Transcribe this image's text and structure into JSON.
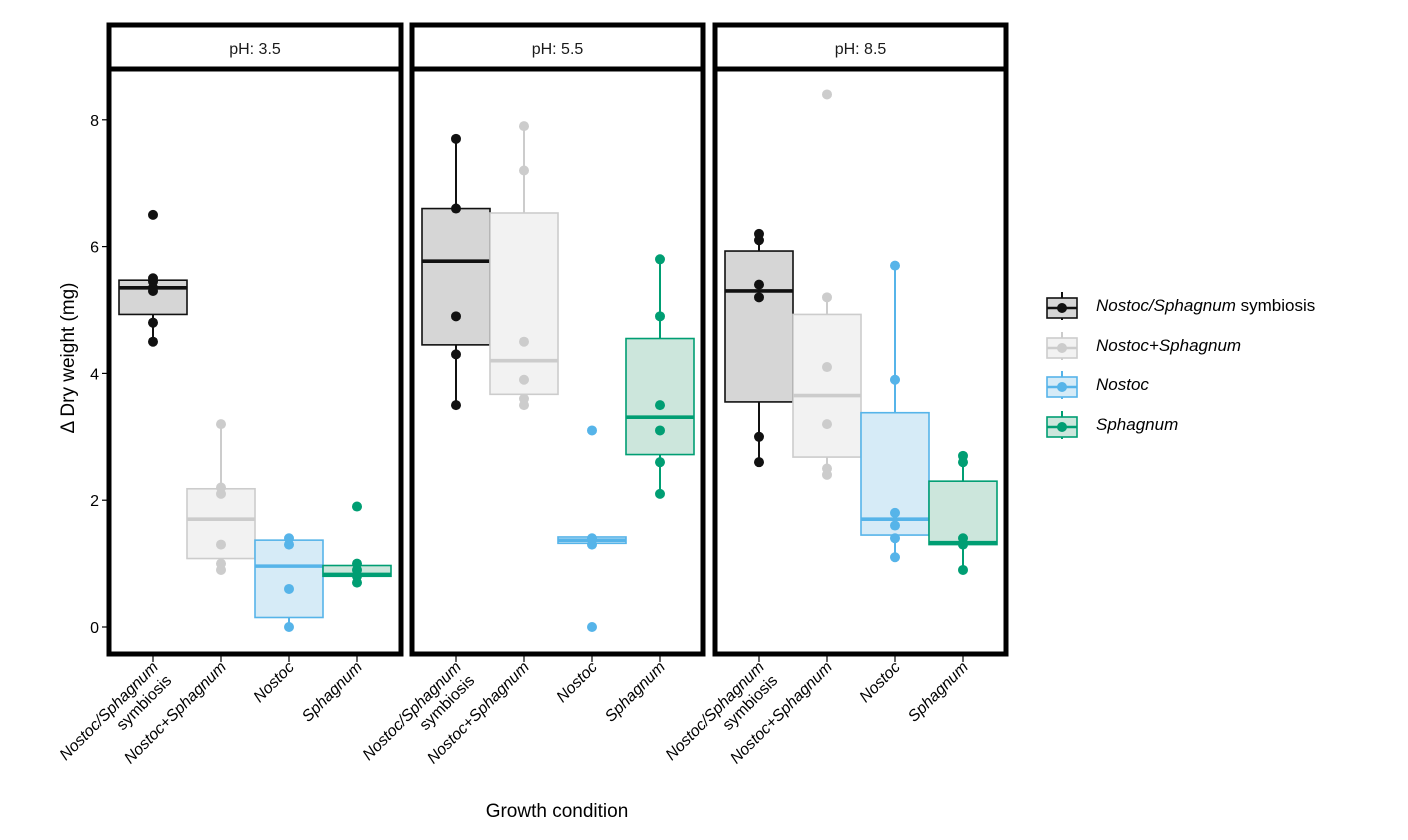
{
  "chart_data": {
    "type": "box",
    "xlabel": "Growth condition",
    "ylabel": "Δ Dry weight (mg)",
    "ylim": [
      -0.4,
      8.95
    ],
    "yticks": [
      0,
      2,
      4,
      6,
      8
    ],
    "ytick_labels": [
      "0",
      "2",
      "4",
      "6",
      "8"
    ],
    "categories": [
      {
        "key": "sym",
        "lines": [
          [
            "Nostoc/Sphagnum",
            ""
          ],
          [
            "symbiosis"
          ]
        ],
        "italic_prefix": true
      },
      {
        "key": "plus",
        "lines": [
          [
            "Nostoc+Sphagnum"
          ]
        ]
      },
      {
        "key": "nos",
        "lines": [
          [
            "Nostoc"
          ]
        ]
      },
      {
        "key": "sph",
        "lines": [
          [
            "Sphagnum"
          ]
        ]
      }
    ],
    "series_colors": {
      "sym": {
        "stroke": "#111111",
        "fill": "#d6d6d6",
        "point": "#111111"
      },
      "plus": {
        "stroke": "#cccccc",
        "fill": "#f2f2f2",
        "point": "#cccccc"
      },
      "nos": {
        "stroke": "#56b4e9",
        "fill": "#d6ebf7",
        "point": "#56b4e9"
      },
      "sph": {
        "stroke": "#009e73",
        "fill": "#cce6dc",
        "point": "#009e73"
      }
    },
    "panels": [
      {
        "title": "pH: 3.5",
        "groups": [
          {
            "key": "sym",
            "min": 4.5,
            "q1": 4.93,
            "median": 5.35,
            "q3": 5.47,
            "max": 5.55,
            "points": [
              4.5,
              4.8,
              5.3,
              5.35,
              5.45,
              5.5,
              6.5
            ]
          },
          {
            "key": "plus",
            "min": 0.9,
            "q1": 1.08,
            "median": 1.7,
            "q3": 2.18,
            "max": 3.2,
            "points": [
              0.9,
              1.0,
              1.3,
              2.1,
              2.2,
              3.2
            ]
          },
          {
            "key": "nos",
            "min": 0.0,
            "q1": 0.15,
            "median": 0.96,
            "q3": 1.37,
            "max": 1.4,
            "points": [
              0.0,
              0.6,
              1.3,
              1.4
            ]
          },
          {
            "key": "sph",
            "min": 0.7,
            "q1": 0.8,
            "median": 0.83,
            "q3": 0.97,
            "max": 1.0,
            "points": [
              0.7,
              0.8,
              0.9,
              1.0,
              1.9
            ]
          }
        ]
      },
      {
        "title": "pH: 5.5",
        "groups": [
          {
            "key": "sym",
            "min": 3.5,
            "q1": 4.45,
            "median": 5.77,
            "q3": 6.6,
            "max": 7.7,
            "points": [
              3.5,
              4.3,
              4.9,
              6.6,
              7.7
            ]
          },
          {
            "key": "plus",
            "min": 3.5,
            "q1": 3.67,
            "median": 4.2,
            "q3": 6.53,
            "max": 7.9,
            "points": [
              3.5,
              3.6,
              3.9,
              4.5,
              7.2,
              7.9
            ]
          },
          {
            "key": "nos",
            "min": 1.3,
            "q1": 1.32,
            "median": 1.37,
            "q3": 1.42,
            "max": 1.42,
            "points": [
              0.0,
              1.3,
              1.4,
              3.1
            ]
          },
          {
            "key": "sph",
            "min": 2.1,
            "q1": 2.72,
            "median": 3.31,
            "q3": 4.55,
            "max": 5.8,
            "points": [
              2.1,
              2.6,
              3.1,
              3.5,
              4.9,
              5.8
            ]
          }
        ]
      },
      {
        "title": "pH: 8.5",
        "groups": [
          {
            "key": "sym",
            "min": 2.6,
            "q1": 3.55,
            "median": 5.3,
            "q3": 5.93,
            "max": 6.2,
            "points": [
              2.6,
              3.0,
              5.2,
              5.4,
              6.1,
              6.2
            ]
          },
          {
            "key": "plus",
            "min": 2.4,
            "q1": 2.68,
            "median": 3.65,
            "q3": 4.93,
            "max": 5.2,
            "points": [
              2.4,
              2.5,
              3.2,
              4.1,
              5.2,
              8.4
            ]
          },
          {
            "key": "nos",
            "min": 1.1,
            "q1": 1.45,
            "median": 1.7,
            "q3": 3.38,
            "max": 5.7,
            "points": [
              1.1,
              1.4,
              1.6,
              1.8,
              3.9,
              5.7
            ]
          },
          {
            "key": "sph",
            "min": 0.9,
            "q1": 1.3,
            "median": 1.33,
            "q3": 2.3,
            "max": 2.7,
            "points": [
              0.9,
              1.3,
              1.4,
              2.6,
              2.7
            ]
          }
        ]
      }
    ],
    "legend": [
      {
        "key": "sym",
        "label_italic": "Nostoc/Sphagnum",
        "label_plain": " symbiosis"
      },
      {
        "key": "plus",
        "label_italic": "Nostoc+Sphagnum",
        "label_plain": ""
      },
      {
        "key": "nos",
        "label_italic": "Nostoc",
        "label_plain": ""
      },
      {
        "key": "sph",
        "label_italic": "Sphagnum",
        "label_plain": ""
      }
    ]
  }
}
